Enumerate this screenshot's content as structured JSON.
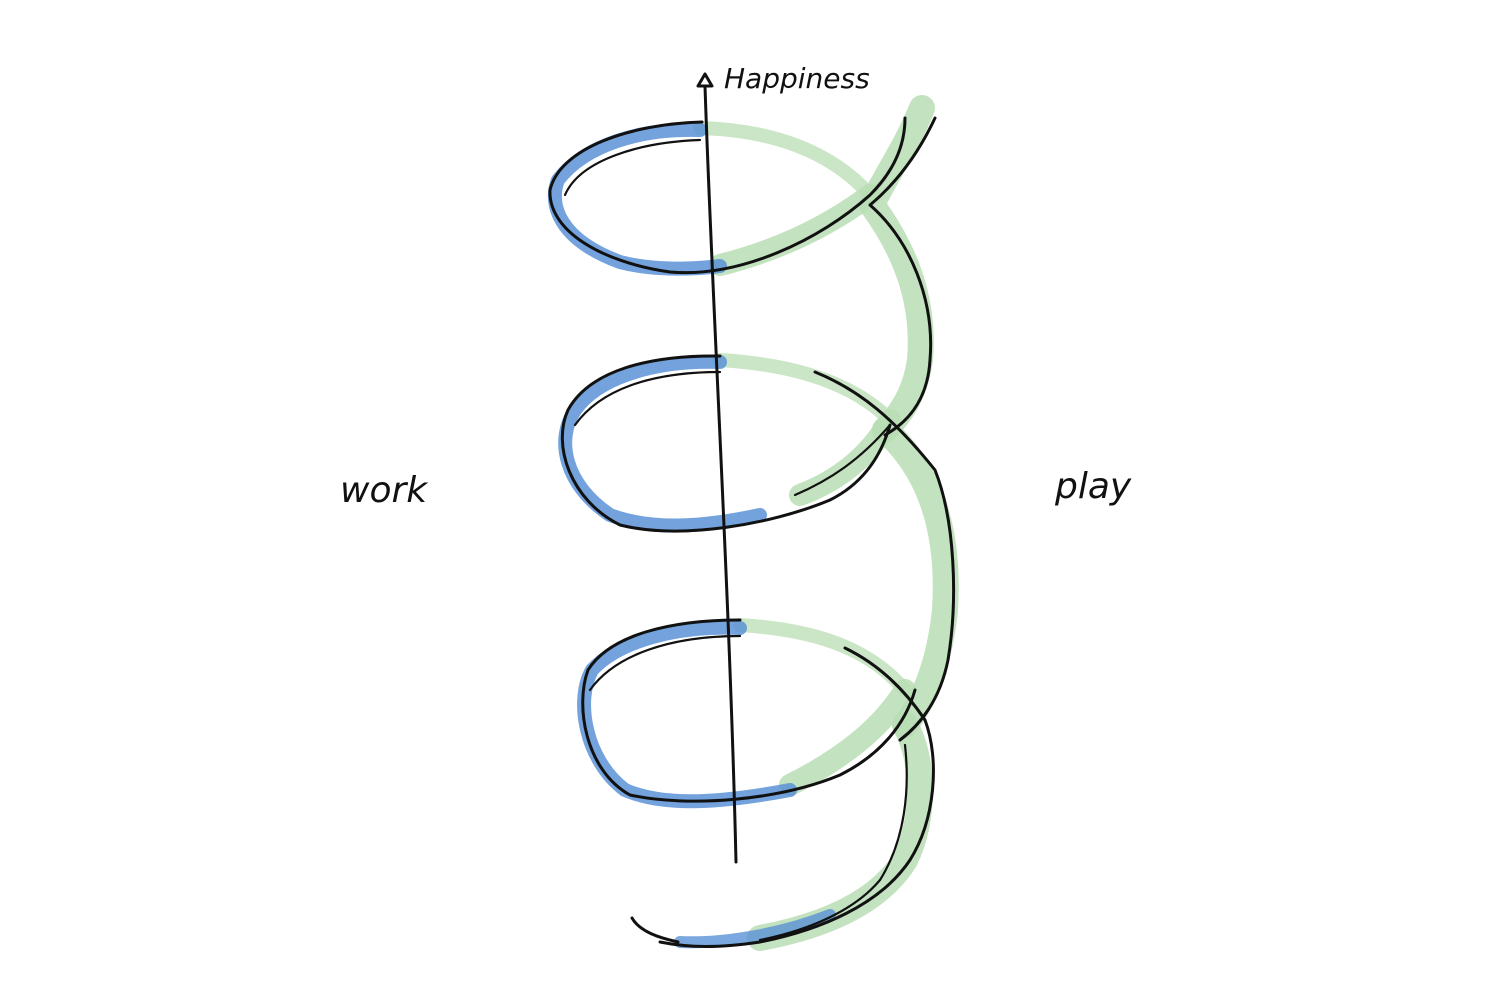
{
  "labels": {
    "axis": "Happiness",
    "left": "work",
    "right": "play"
  },
  "colors": {
    "ink": "#111111",
    "work_band": "#4a86d0",
    "play_band": "#a9d4a6",
    "background": "#ffffff"
  }
}
